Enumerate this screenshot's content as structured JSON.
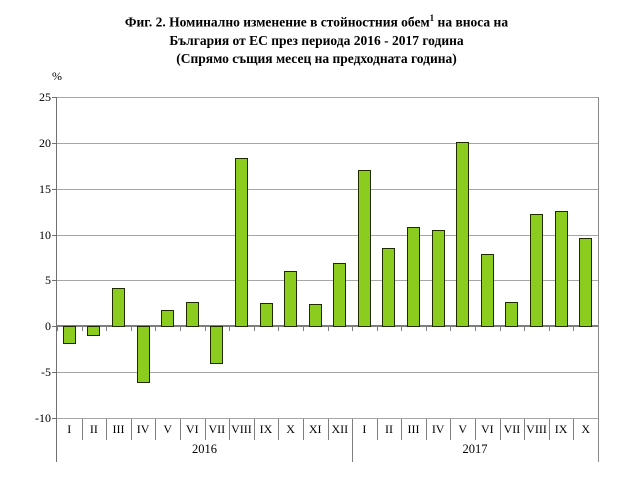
{
  "title": {
    "line1_pre": "Фиг. 2. Номинално изменение в стойностния обем",
    "line1_sup": "1",
    "line1_post": " на вноса на",
    "line2": "България от ЕС през периода 2016 - 2017 година",
    "line3": "(Спрямо същия месец на предходната година)"
  },
  "chart_data": {
    "type": "bar",
    "title": "Фиг. 2. Номинално изменение в стойностния обем¹ на вноса на България от ЕС през периода 2016 - 2017 година (Спрямо същия месец на предходната година)",
    "xlabel": "",
    "ylabel": "%",
    "ylim": [
      -10,
      25
    ],
    "ytick_step": 5,
    "yticks": [
      25,
      20,
      15,
      10,
      5,
      0,
      -5,
      -10
    ],
    "grid": true,
    "legend": "none",
    "bar_color": "#8ccc1e",
    "bar_border_color": "#1f2a00",
    "groups": [
      {
        "year": "2016",
        "categories": [
          "I",
          "II",
          "III",
          "IV",
          "V",
          "VI",
          "VII",
          "VIII",
          "IX",
          "X",
          "XI",
          "XII"
        ],
        "values": [
          -1.8,
          -0.9,
          4.2,
          -6.1,
          1.8,
          2.6,
          -4.0,
          18.4,
          2.5,
          6.0,
          2.4,
          6.9
        ]
      },
      {
        "year": "2017",
        "categories": [
          "I",
          "II",
          "III",
          "IV",
          "V",
          "VI",
          "VII",
          "VIII",
          "IX",
          "X"
        ],
        "values": [
          17.0,
          8.5,
          10.8,
          10.5,
          20.1,
          7.9,
          2.6,
          12.2,
          12.6,
          9.6
        ]
      }
    ]
  }
}
